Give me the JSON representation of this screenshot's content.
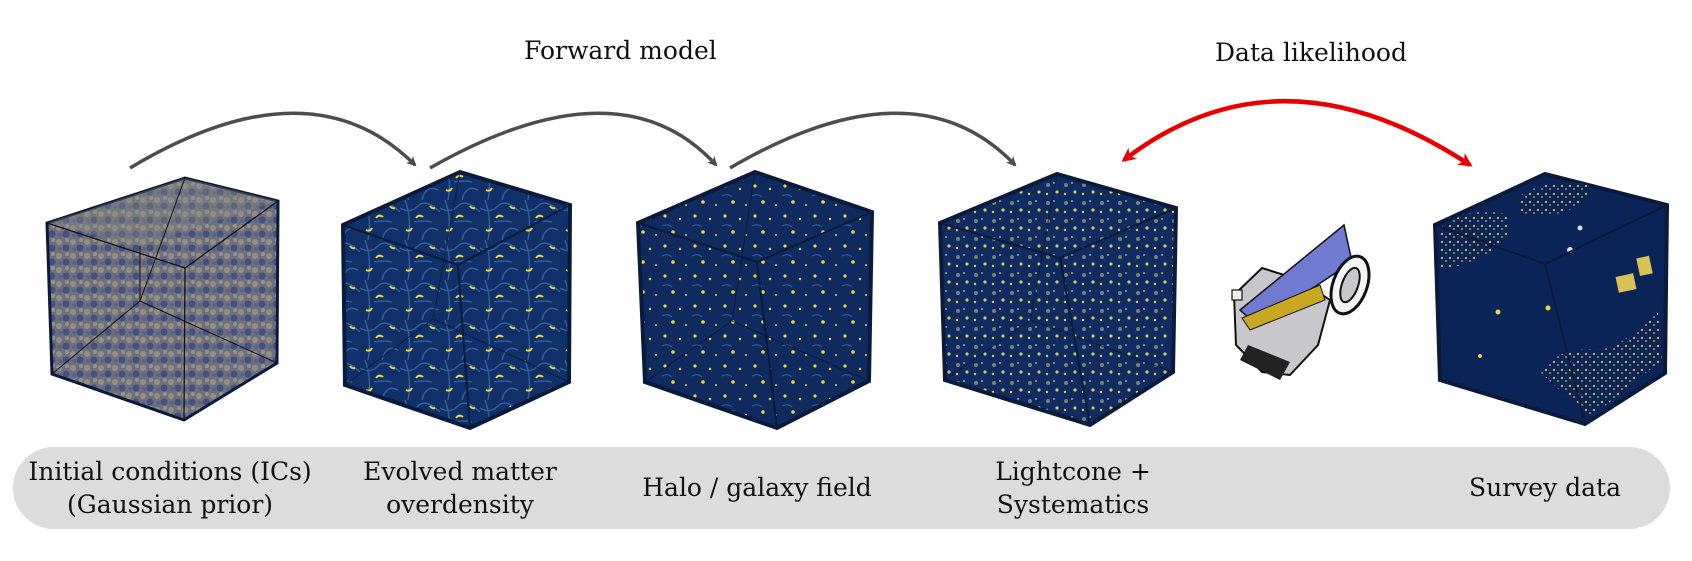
{
  "headings": {
    "forward_model": "Forward model",
    "data_likelihood": "Data likelihood"
  },
  "stages": [
    {
      "line1": "Initial conditions (ICs)",
      "line2": "(Gaussian prior)"
    },
    {
      "line1": "Evolved matter",
      "line2": "overdensity"
    },
    {
      "line1": "Halo / galaxy field",
      "line2": ""
    },
    {
      "line1": "Lightcone +",
      "line2": "Systematics"
    },
    {
      "line1": "Survey data",
      "line2": ""
    }
  ],
  "colors": {
    "cube_fill": "#0d2a5c",
    "cube_edge": "#0a1a3a",
    "ic_noise": "#8a8a78",
    "structure": "#f0d23a",
    "forward_arrow": "#4d4d4d",
    "likelihood_arrow": "#e80000",
    "label_bar": "#dcdcdc",
    "telescope_panel": "#6f7ad0",
    "telescope_gold": "#c8a820",
    "telescope_body": "#c8c8cc"
  },
  "icons": {
    "telescope": "telescope-icon"
  }
}
